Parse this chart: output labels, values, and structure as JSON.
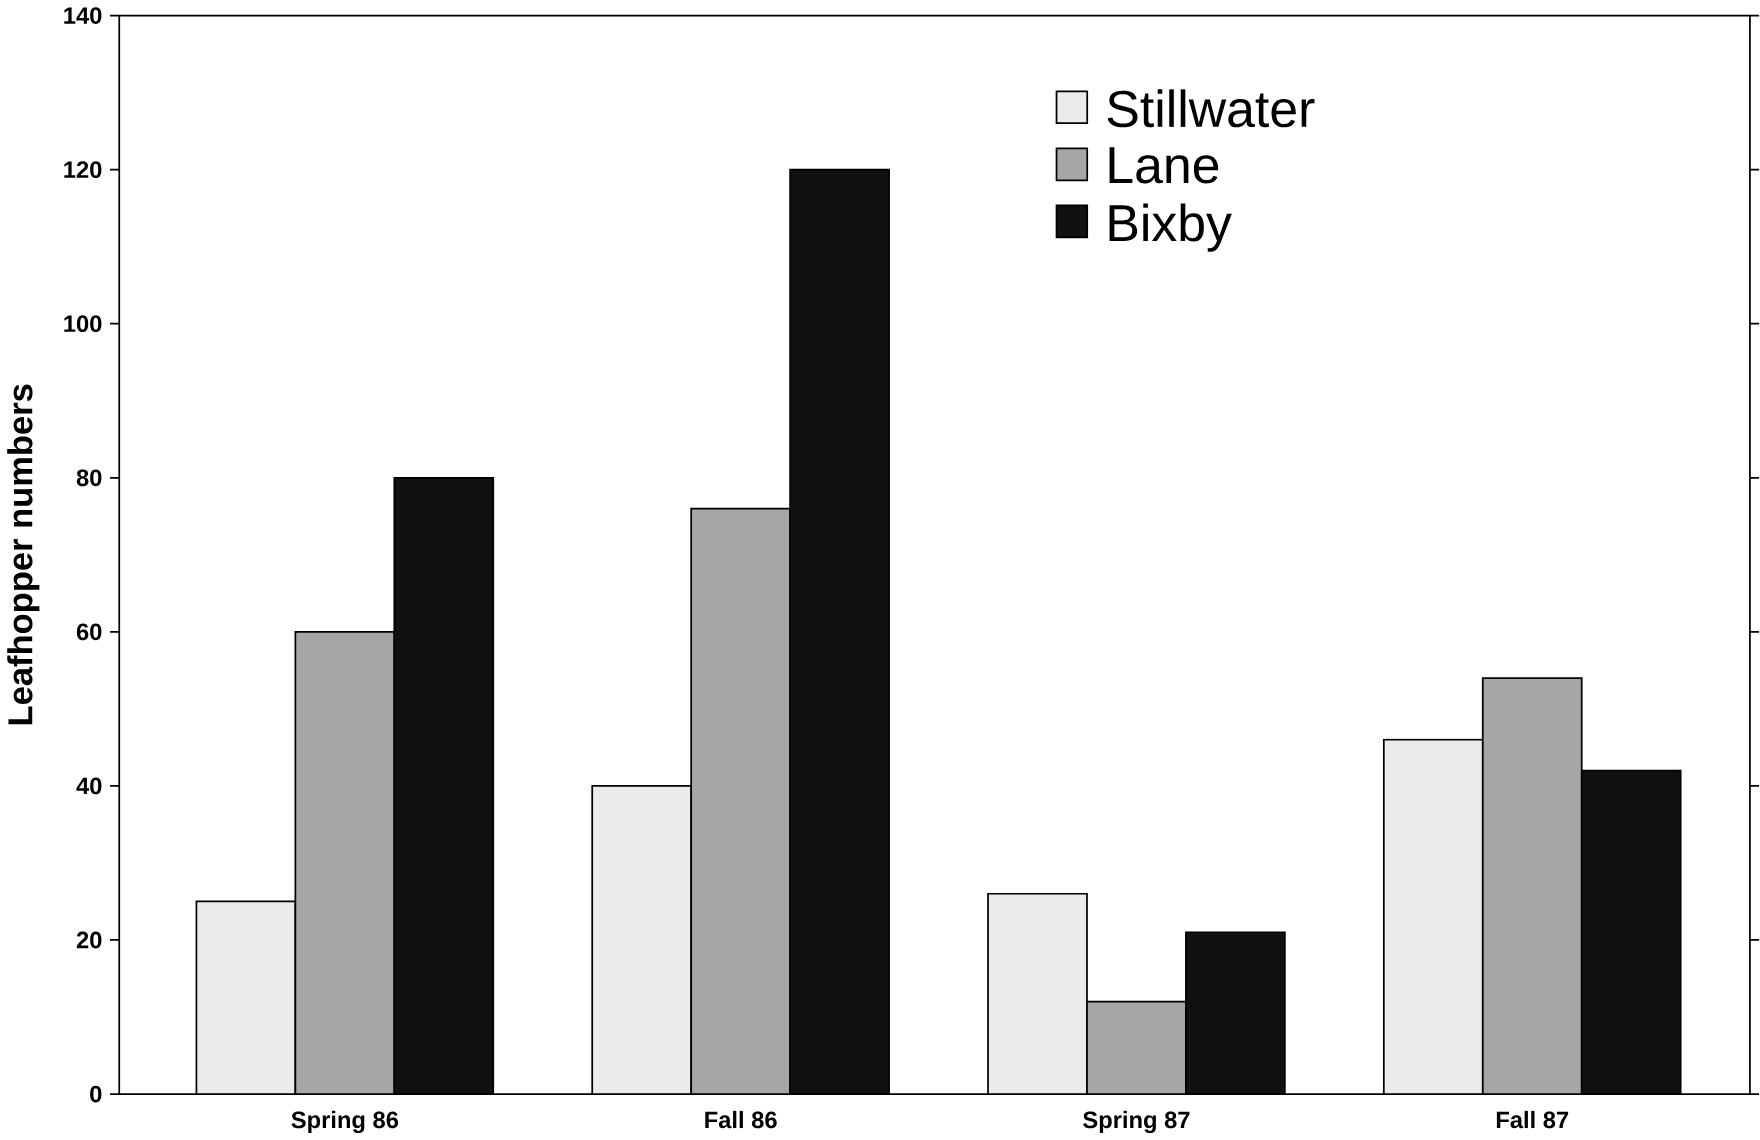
{
  "chart_data": {
    "type": "bar",
    "ylabel": "Leafhopper numbers",
    "categories": [
      "Spring 86",
      "Fall 86",
      "Spring 87",
      "Fall 87"
    ],
    "series": [
      {
        "name": "Stillwater",
        "color": "#ebebeb",
        "values": [
          25,
          40,
          26,
          46
        ]
      },
      {
        "name": "Lane",
        "color": "#a6a6a6",
        "values": [
          60,
          76,
          12,
          54
        ]
      },
      {
        "name": "Bixby",
        "color": "#111111",
        "values": [
          80,
          120,
          21,
          42
        ]
      }
    ],
    "ylim": [
      0,
      140
    ],
    "yticks": [
      0,
      20,
      40,
      60,
      80,
      100,
      120,
      140
    ],
    "legend": "top right",
    "grid": false
  }
}
